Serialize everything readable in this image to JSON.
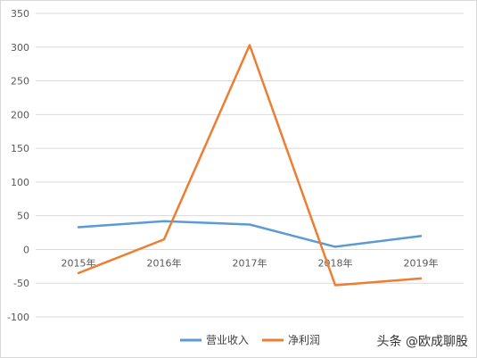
{
  "chart_data": {
    "type": "line",
    "categories": [
      "2015年",
      "2016年",
      "2017年",
      "2018年",
      "2019年"
    ],
    "series": [
      {
        "name": "营业收入",
        "color": "#5b9bd5",
        "values": [
          33,
          42,
          37,
          4,
          20
        ]
      },
      {
        "name": "净利润",
        "color": "#ed7d31",
        "values": [
          -35,
          15,
          303,
          -53,
          -43
        ]
      }
    ],
    "y_ticks": [
      350,
      300,
      250,
      200,
      150,
      100,
      50,
      0,
      -50,
      -100
    ],
    "ylim": [
      -100,
      350
    ],
    "grid": true,
    "legend_position": "bottom-center"
  },
  "watermark": "头条 @欧成聊股"
}
